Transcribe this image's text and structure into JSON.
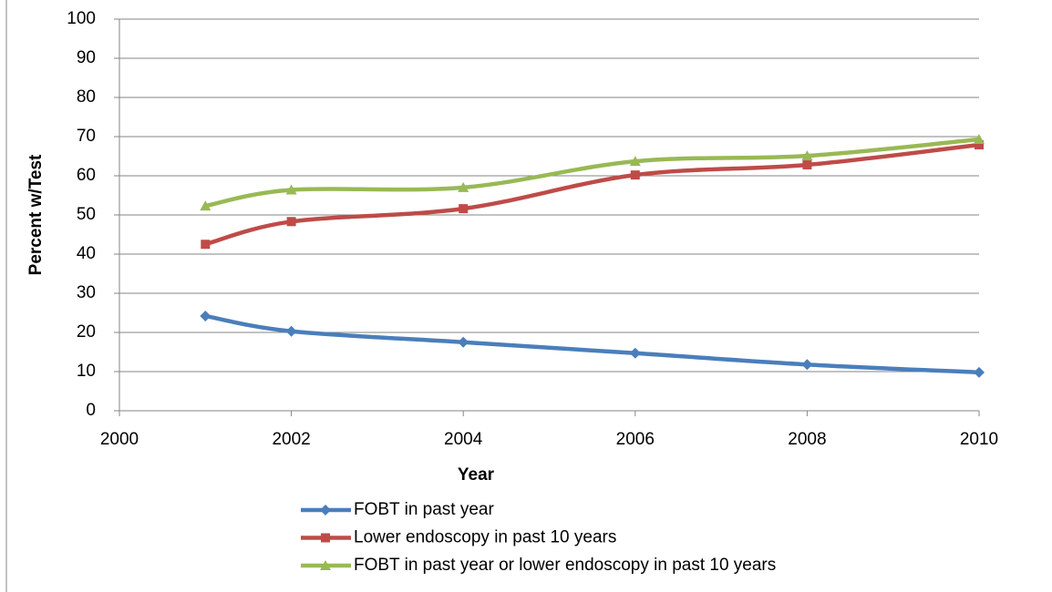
{
  "chart_data": {
    "type": "line",
    "x_label": "Year",
    "y_label": "Percent w/Test",
    "x": [
      2001,
      2002,
      2004,
      2006,
      2008,
      2010
    ],
    "series": [
      {
        "name": "FOBT in past year",
        "color": "#4a7ebb",
        "marker": "diamond",
        "values": [
          24.2,
          20.3,
          17.5,
          14.7,
          11.8,
          9.8
        ]
      },
      {
        "name": "Lower endoscopy in past 10 years",
        "color": "#be4b48",
        "marker": "square",
        "values": [
          42.5,
          48.3,
          51.6,
          60.2,
          62.8,
          67.9
        ]
      },
      {
        "name": "FOBT in past year or lower endoscopy in past 10 years",
        "color": "#98b954",
        "marker": "triangle",
        "values": [
          52.3,
          56.4,
          57.0,
          63.7,
          65.1,
          69.3
        ]
      }
    ],
    "xlim": [
      2000,
      2010
    ],
    "xticks": [
      2000,
      2002,
      2004,
      2006,
      2008,
      2010
    ],
    "ylim": [
      0,
      100
    ],
    "yticks": [
      0,
      10,
      20,
      30,
      40,
      50,
      60,
      70,
      80,
      90,
      100
    ],
    "grid": true,
    "smooth": true,
    "legend": "bottom"
  }
}
